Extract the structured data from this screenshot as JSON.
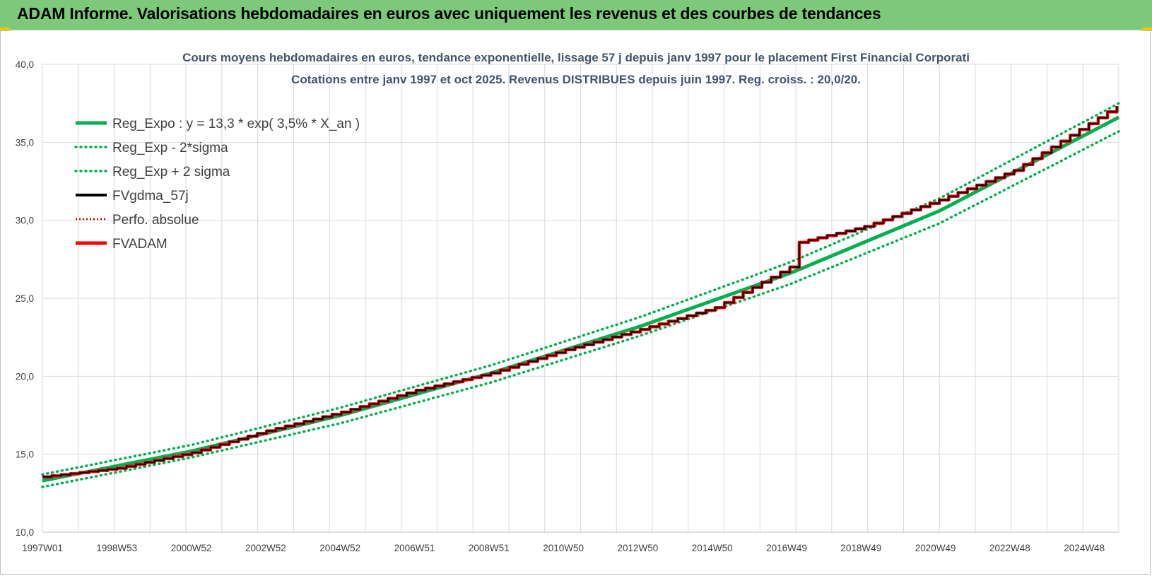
{
  "report_title": "ADAM Informe. Valorisations hebdomadaires en euros avec uniquement les revenus et des courbes de tendances",
  "chart_data": {
    "type": "line",
    "title": "Cours moyens hebdomadaires en euros, tendance exponentielle, lissage 57 j depuis janv 1997 pour le placement First Financial Corporati",
    "subtitle": "Cotations entre janv 1997 et oct 2025. Revenus DISTRIBUES depuis juin 1997. Reg. croiss. : 20,0/20.",
    "xlabel": "",
    "ylabel": "",
    "ylim": [
      10,
      40
    ],
    "y_ticks": [
      "10,0",
      "15,0",
      "20,0",
      "25,0",
      "30,0",
      "35,0",
      "40,0"
    ],
    "x_ticks": [
      "1997W01",
      "1998W53",
      "2000W52",
      "2002W52",
      "2004W52",
      "2006W51",
      "2008W51",
      "2010W50",
      "2012W50",
      "2014W50",
      "2016W49",
      "2018W49",
      "2020W49",
      "2022W48",
      "2024W48"
    ],
    "x_start_year": 1997.0,
    "x_end_year": 2025.8,
    "grid": true,
    "legend_position": "top-left",
    "series": [
      {
        "name": "Reg_Expo : y = 13,3 * exp( 3,5% *  X_an )",
        "color": "#00b050",
        "style": "solid",
        "x": [
          1997,
          2001,
          2005,
          2009,
          2013,
          2017,
          2021,
          2025.8
        ],
        "values": [
          13.3,
          15.2,
          17.5,
          20.2,
          23.2,
          26.6,
          30.6,
          36.6
        ]
      },
      {
        "name": "Reg_Exp - 2*sigma",
        "color": "#00b050",
        "style": "dotted",
        "x": [
          1997,
          2001,
          2005,
          2009,
          2013,
          2017,
          2021,
          2025.8
        ],
        "values": [
          12.9,
          14.8,
          17.0,
          19.6,
          22.6,
          25.9,
          29.8,
          35.7
        ]
      },
      {
        "name": "Reg_Exp + 2 sigma",
        "color": "#00b050",
        "style": "dotted",
        "x": [
          1997,
          2001,
          2005,
          2009,
          2013,
          2017,
          2021,
          2025.8
        ],
        "values": [
          13.7,
          15.6,
          18.0,
          20.7,
          23.8,
          27.3,
          31.4,
          37.5
        ]
      },
      {
        "name": "FVgdma_57j",
        "color": "#000000",
        "style": "solid",
        "x": [
          1997,
          1999,
          2001,
          2003,
          2005,
          2007,
          2009,
          2011,
          2013,
          2015,
          2017,
          2017.1,
          2019,
          2021,
          2023,
          2025.8
        ],
        "values": [
          13.55,
          14.1,
          15.1,
          16.5,
          17.7,
          19.1,
          20.2,
          21.7,
          23.0,
          24.4,
          27.0,
          28.5,
          29.6,
          31.3,
          33.2,
          37.4
        ]
      },
      {
        "name": "Perfo. absolue",
        "color": "#c00000",
        "style": "dotted",
        "x": [
          1997,
          1999,
          2001,
          2003,
          2005,
          2007,
          2009,
          2011,
          2013,
          2015,
          2017,
          2017.1,
          2019,
          2021,
          2023,
          2025.8
        ],
        "values": [
          13.55,
          14.1,
          15.1,
          16.5,
          17.7,
          19.1,
          20.2,
          21.7,
          23.0,
          24.4,
          27.0,
          28.5,
          29.6,
          31.3,
          33.2,
          37.4
        ]
      },
      {
        "name": "FVADAM",
        "color": "#ff0000",
        "style": "solid",
        "x": [
          1997,
          1999,
          2001,
          2003,
          2005,
          2007,
          2009,
          2011,
          2013,
          2015,
          2017,
          2017.1,
          2019,
          2021,
          2023,
          2025.8
        ],
        "values": [
          13.55,
          14.1,
          15.1,
          16.5,
          17.7,
          19.1,
          20.2,
          21.7,
          23.0,
          24.4,
          27.0,
          28.5,
          29.6,
          31.3,
          33.2,
          37.4
        ]
      }
    ]
  }
}
